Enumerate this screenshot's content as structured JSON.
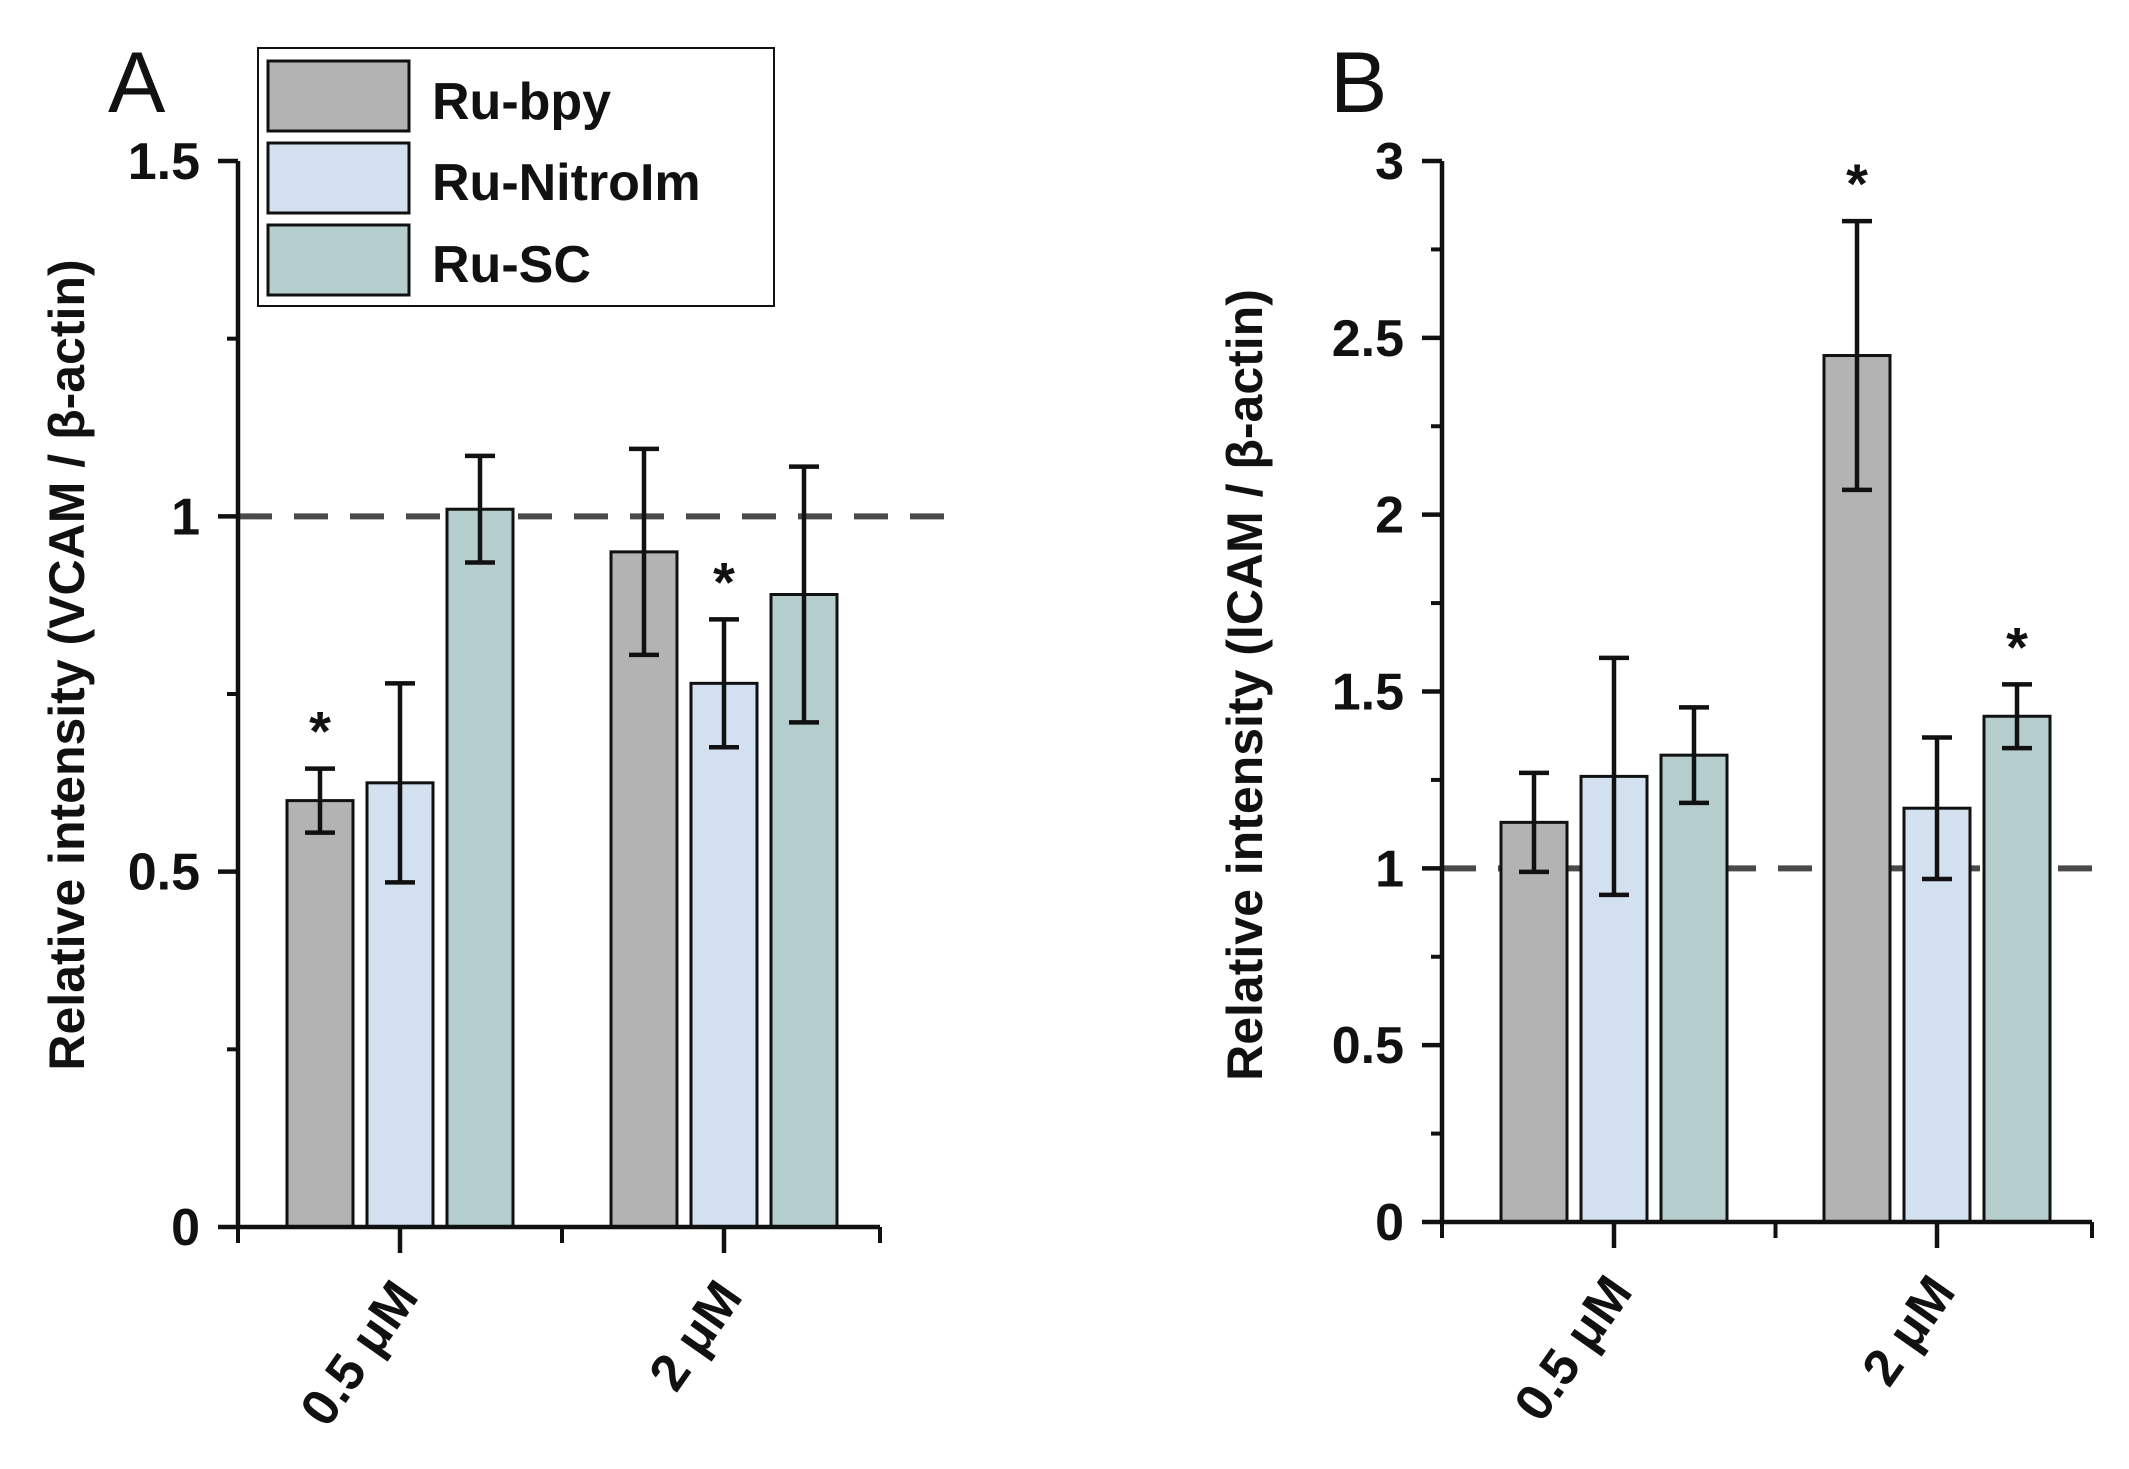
{
  "figure": {
    "width": 2129,
    "height": 1469
  },
  "colors": {
    "Ru-bpy": "#b3b3b3",
    "Ru-NitroIm": "#d3e0ef",
    "Ru-SC": "#b5cecd",
    "axis": "#111111",
    "reference_line": "#4a4a4a"
  },
  "legend": [
    "Ru-bpy",
    "Ru-NitroIm",
    "Ru-SC"
  ],
  "chart_data": [
    {
      "type": "bar",
      "panel": "A",
      "title": "",
      "xlabel": "",
      "ylabel": "Relative intensity (VCAM / β-actin)",
      "ylim": [
        0,
        1.5
      ],
      "yticks": [
        0,
        0.5,
        1,
        1.5
      ],
      "ytick_labels": [
        "0",
        "0.5",
        "1",
        "1.5"
      ],
      "categories": [
        "0.5 μM",
        "2 μM"
      ],
      "reference_line": 1,
      "legend_position": "top-left",
      "series": [
        {
          "name": "Ru-bpy",
          "values": [
            0.6,
            0.95
          ],
          "errors": [
            0.045,
            0.145
          ],
          "significant": [
            true,
            false
          ]
        },
        {
          "name": "Ru-NitroIm",
          "values": [
            0.625,
            0.765
          ],
          "errors": [
            0.14,
            0.09
          ],
          "significant": [
            false,
            true
          ]
        },
        {
          "name": "Ru-SC",
          "values": [
            1.01,
            0.89
          ],
          "errors": [
            0.075,
            0.18
          ],
          "significant": [
            false,
            false
          ]
        }
      ],
      "significance_marker": "*"
    },
    {
      "type": "bar",
      "panel": "B",
      "title": "",
      "xlabel": "",
      "ylabel": "Relative intensity (ICAM / β-actin)",
      "ylim": [
        0,
        3
      ],
      "yticks": [
        0,
        0.5,
        1,
        1.5,
        2,
        2.5,
        3
      ],
      "ytick_labels": [
        "0",
        "0.5",
        "1",
        "1.5",
        "2",
        "2.5",
        "3"
      ],
      "categories": [
        "0.5 μM",
        "2 μM"
      ],
      "reference_line": 1,
      "series": [
        {
          "name": "Ru-bpy",
          "values": [
            1.13,
            2.45
          ],
          "errors": [
            0.14,
            0.38
          ],
          "significant": [
            false,
            true
          ]
        },
        {
          "name": "Ru-NitroIm",
          "values": [
            1.26,
            1.17
          ],
          "errors": [
            0.335,
            0.2
          ],
          "significant": [
            false,
            false
          ]
        },
        {
          "name": "Ru-SC",
          "values": [
            1.32,
            1.43
          ],
          "errors": [
            0.135,
            0.09
          ],
          "significant": [
            false,
            true
          ]
        }
      ],
      "significance_marker": "*"
    }
  ]
}
